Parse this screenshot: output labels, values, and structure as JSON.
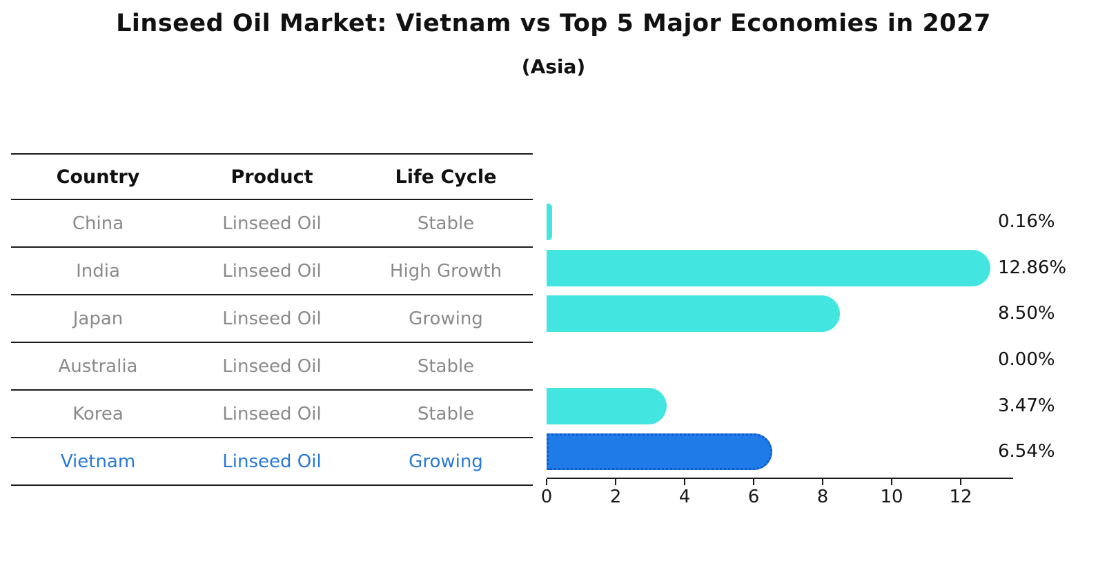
{
  "title": "Linseed Oil Market: Vietnam vs Top 5 Major Economies in 2027",
  "subtitle": "(Asia)",
  "table": {
    "headers": [
      "Country",
      "Product",
      "Life Cycle"
    ],
    "rows": [
      {
        "country": "China",
        "product": "Linseed Oil",
        "life_cycle": "Stable",
        "highlight": false
      },
      {
        "country": "India",
        "product": "Linseed Oil",
        "life_cycle": "High Growth",
        "highlight": false
      },
      {
        "country": "Japan",
        "product": "Linseed Oil",
        "life_cycle": "Growing",
        "highlight": false
      },
      {
        "country": "Australia",
        "product": "Linseed Oil",
        "life_cycle": "Stable",
        "highlight": false
      },
      {
        "country": "Korea",
        "product": "Linseed Oil",
        "life_cycle": "Stable",
        "highlight": false
      },
      {
        "country": "Vietnam",
        "product": "Linseed Oil",
        "life_cycle": "Growing",
        "highlight": true
      }
    ]
  },
  "chart_data": {
    "type": "bar",
    "orientation": "horizontal",
    "title": "Linseed Oil Market: Vietnam vs Top 5 Major Economies in 2027",
    "subtitle": "(Asia)",
    "categories": [
      "China",
      "India",
      "Japan",
      "Australia",
      "Korea",
      "Vietnam"
    ],
    "values": [
      0.16,
      12.86,
      8.5,
      0.0,
      3.47,
      6.54
    ],
    "value_labels": [
      "0.16%",
      "12.86%",
      "8.50%",
      "0.00%",
      "3.47%",
      "6.54%"
    ],
    "highlight_category": "Vietnam",
    "x_ticks": [
      0,
      2,
      4,
      6,
      8,
      10,
      12
    ],
    "xlim": [
      0,
      13.52
    ],
    "xlabel": "",
    "ylabel": "",
    "grid": false,
    "legend": false,
    "colors": {
      "bar_default": "#43e5e1",
      "bar_highlight": "#1f7be8",
      "bar_highlight_border": "#1259c9",
      "highlight_text": "#2878d8",
      "row_text": "#8a8a8a",
      "header_text": "#111111",
      "axis_color": "#1a1a1a",
      "value_label_color": "#111111"
    }
  }
}
